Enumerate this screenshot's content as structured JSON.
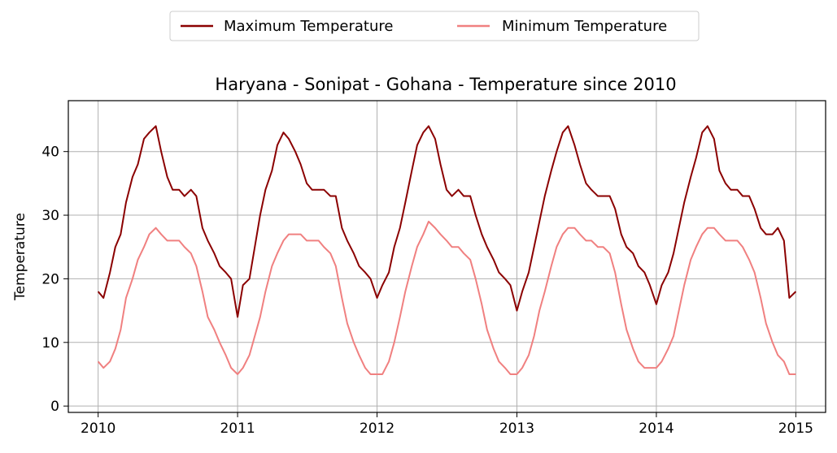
{
  "chart_data": {
    "type": "line",
    "title": "Haryana - Sonipat - Gohana - Temperature since 2010",
    "xlabel": "",
    "ylabel": "Temperature",
    "x_type": "date",
    "xlim": [
      "2009-10-15",
      "2015-03-20"
    ],
    "ylim": [
      -1,
      48
    ],
    "xticks": [
      "2010",
      "2011",
      "2012",
      "2013",
      "2014",
      "2015"
    ],
    "yticks": [
      0,
      10,
      20,
      30,
      40
    ],
    "grid": true,
    "legend": {
      "placement": "top-center",
      "columns": 2
    },
    "x": [
      "2010-01-01",
      "2010-01-15",
      "2010-02-01",
      "2010-02-15",
      "2010-03-01",
      "2010-03-15",
      "2010-04-01",
      "2010-04-15",
      "2010-05-01",
      "2010-05-15",
      "2010-06-01",
      "2010-06-15",
      "2010-07-01",
      "2010-07-15",
      "2010-08-01",
      "2010-08-15",
      "2010-09-01",
      "2010-09-15",
      "2010-10-01",
      "2010-10-15",
      "2010-11-01",
      "2010-11-15",
      "2010-12-01",
      "2010-12-15",
      "2011-01-01",
      "2011-01-15",
      "2011-02-01",
      "2011-02-15",
      "2011-03-01",
      "2011-03-15",
      "2011-04-01",
      "2011-04-15",
      "2011-05-01",
      "2011-05-15",
      "2011-06-01",
      "2011-06-15",
      "2011-07-01",
      "2011-07-15",
      "2011-08-01",
      "2011-08-15",
      "2011-09-01",
      "2011-09-15",
      "2011-10-01",
      "2011-10-15",
      "2011-11-01",
      "2011-11-15",
      "2011-12-01",
      "2011-12-15",
      "2012-01-01",
      "2012-01-15",
      "2012-02-01",
      "2012-02-15",
      "2012-03-01",
      "2012-03-15",
      "2012-04-01",
      "2012-04-15",
      "2012-05-01",
      "2012-05-15",
      "2012-06-01",
      "2012-06-15",
      "2012-07-01",
      "2012-07-15",
      "2012-08-01",
      "2012-08-15",
      "2012-09-01",
      "2012-09-15",
      "2012-10-01",
      "2012-10-15",
      "2012-11-01",
      "2012-11-15",
      "2012-12-01",
      "2012-12-15",
      "2013-01-01",
      "2013-01-15",
      "2013-02-01",
      "2013-02-15",
      "2013-03-01",
      "2013-03-15",
      "2013-04-01",
      "2013-04-15",
      "2013-05-01",
      "2013-05-15",
      "2013-06-01",
      "2013-06-15",
      "2013-07-01",
      "2013-07-15",
      "2013-08-01",
      "2013-08-15",
      "2013-09-01",
      "2013-09-15",
      "2013-10-01",
      "2013-10-15",
      "2013-11-01",
      "2013-11-15",
      "2013-12-01",
      "2013-12-15",
      "2014-01-01",
      "2014-01-15",
      "2014-02-01",
      "2014-02-15",
      "2014-03-01",
      "2014-03-15",
      "2014-04-01",
      "2014-04-15",
      "2014-05-01",
      "2014-05-15",
      "2014-06-01",
      "2014-06-15",
      "2014-07-01",
      "2014-07-15",
      "2014-08-01",
      "2014-08-15",
      "2014-09-01",
      "2014-09-15",
      "2014-10-01",
      "2014-10-15",
      "2014-11-01",
      "2014-11-15",
      "2014-12-01",
      "2014-12-15",
      "2015-01-01"
    ],
    "series": [
      {
        "name": "Maximum Temperature",
        "color": "#8b0000",
        "values": [
          18,
          17,
          21,
          25,
          27,
          32,
          36,
          38,
          42,
          43,
          44,
          40,
          36,
          34,
          34,
          33,
          34,
          33,
          28,
          26,
          24,
          22,
          21,
          20,
          14,
          19,
          20,
          25,
          30,
          34,
          37,
          41,
          43,
          42,
          40,
          38,
          35,
          34,
          34,
          34,
          33,
          33,
          28,
          26,
          24,
          22,
          21,
          20,
          17,
          19,
          21,
          25,
          28,
          32,
          37,
          41,
          43,
          44,
          42,
          38,
          34,
          33,
          34,
          33,
          33,
          30,
          27,
          25,
          23,
          21,
          20,
          19,
          15,
          18,
          21,
          25,
          29,
          33,
          37,
          40,
          43,
          44,
          41,
          38,
          35,
          34,
          33,
          33,
          33,
          31,
          27,
          25,
          24,
          22,
          21,
          19,
          16,
          19,
          21,
          24,
          28,
          32,
          36,
          39,
          43,
          44,
          42,
          37,
          35,
          34,
          34,
          33,
          33,
          31,
          28,
          27,
          27,
          28,
          26,
          17,
          18
        ]
      },
      {
        "name": "Minimum Temperature",
        "color": "#f08080",
        "values": [
          7,
          6,
          7,
          9,
          12,
          17,
          20,
          23,
          25,
          27,
          28,
          27,
          26,
          26,
          26,
          25,
          24,
          22,
          18,
          14,
          12,
          10,
          8,
          6,
          5,
          6,
          8,
          11,
          14,
          18,
          22,
          24,
          26,
          27,
          27,
          27,
          26,
          26,
          26,
          25,
          24,
          22,
          17,
          13,
          10,
          8,
          6,
          5,
          5,
          5,
          7,
          10,
          14,
          18,
          22,
          25,
          27,
          29,
          28,
          27,
          26,
          25,
          25,
          24,
          23,
          20,
          16,
          12,
          9,
          7,
          6,
          5,
          5,
          6,
          8,
          11,
          15,
          18,
          22,
          25,
          27,
          28,
          28,
          27,
          26,
          26,
          25,
          25,
          24,
          21,
          16,
          12,
          9,
          7,
          6,
          6,
          6,
          7,
          9,
          11,
          15,
          19,
          23,
          25,
          27,
          28,
          28,
          27,
          26,
          26,
          26,
          25,
          23,
          21,
          17,
          13,
          10,
          8,
          7,
          5,
          5
        ]
      }
    ]
  }
}
